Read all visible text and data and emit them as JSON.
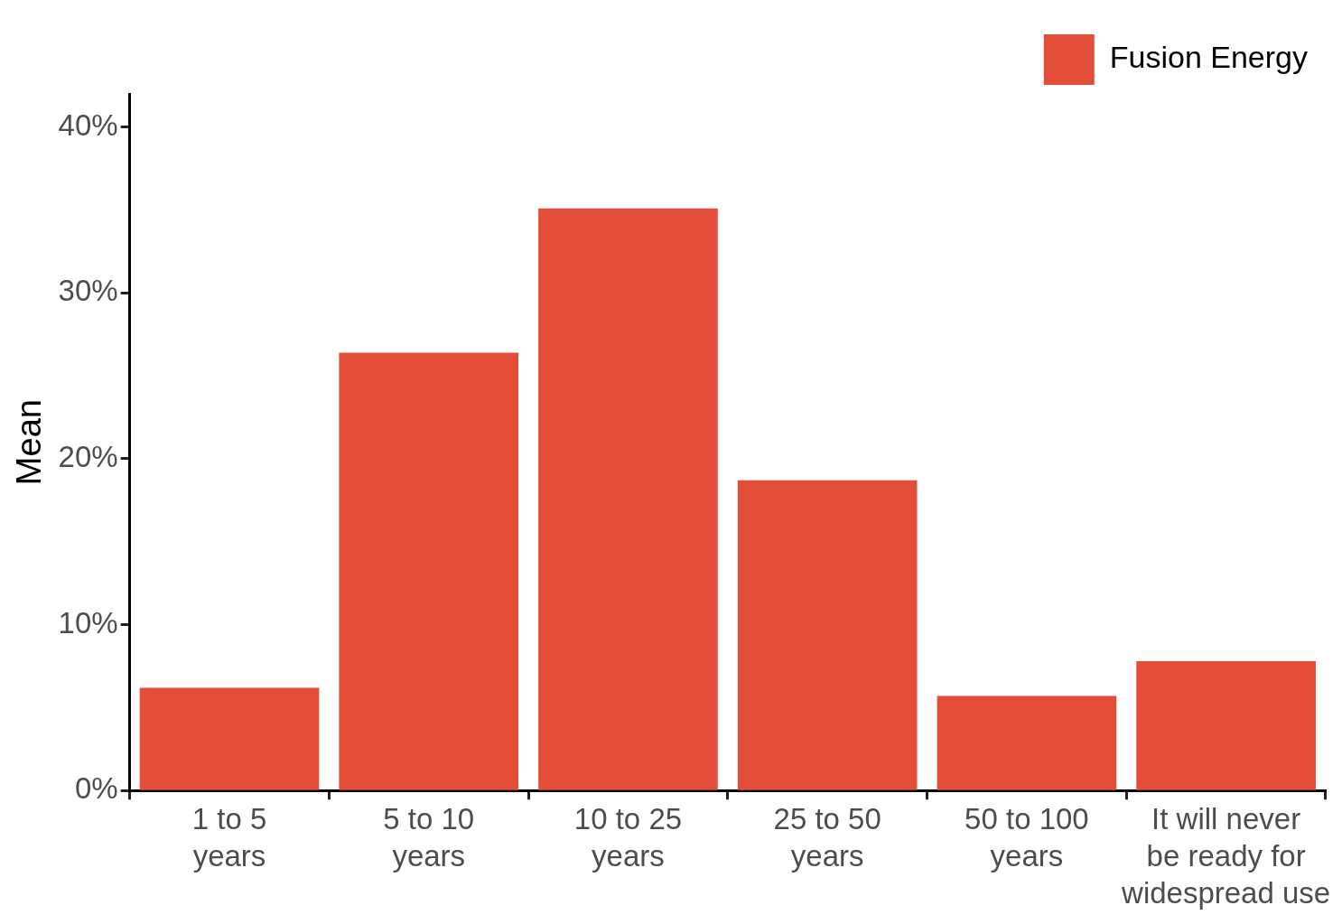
{
  "chart_data": {
    "type": "bar",
    "ylabel": "Mean",
    "categories": [
      "1 to 5\nyears",
      "5 to 10\nyears",
      "10 to 25\nyears",
      "25 to 50\nyears",
      "50 to 100\nyears",
      "It will never\nbe ready for\nwidespread use"
    ],
    "series": [
      {
        "name": "Fusion Energy",
        "color": "#e44d37",
        "values": [
          6.2,
          26.4,
          35.1,
          18.7,
          5.7,
          7.8
        ]
      }
    ],
    "ylim": [
      0,
      42
    ],
    "yticks": [
      {
        "value": 0,
        "label": "0%"
      },
      {
        "value": 10,
        "label": "10%"
      },
      {
        "value": 20,
        "label": "20%"
      },
      {
        "value": 30,
        "label": "30%"
      },
      {
        "value": 40,
        "label": "40%"
      }
    ],
    "grid": false,
    "legend": "top right"
  }
}
